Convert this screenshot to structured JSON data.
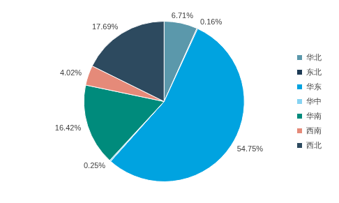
{
  "chart_data": {
    "type": "pie",
    "categories": [
      "华北",
      "东北",
      "华东",
      "华中",
      "华南",
      "西南",
      "西北"
    ],
    "values": [
      6.71,
      0.16,
      54.75,
      0.25,
      16.42,
      4.02,
      17.69
    ],
    "value_labels": [
      "6.71%",
      "0.16%",
      "54.75%",
      "0.25%",
      "16.42%",
      "4.02%",
      "17.69%"
    ],
    "colors": [
      "#5b98ab",
      "#1d3b55",
      "#00a3e0",
      "#86d3f2",
      "#008b7c",
      "#e58a79",
      "#2d4a5f"
    ],
    "legend": "right",
    "data_labels": true
  }
}
